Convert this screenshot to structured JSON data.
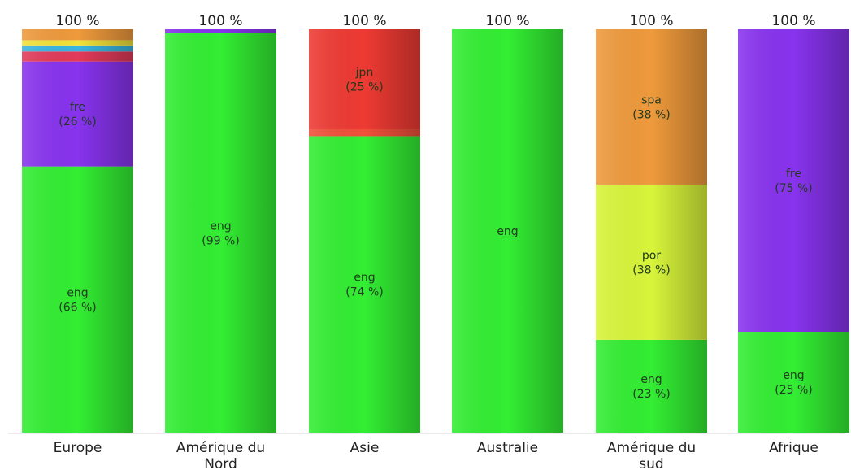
{
  "chart_data": {
    "type": "bar",
    "stacked": true,
    "normalized": true,
    "categories": [
      {
        "label": [
          "Europe"
        ],
        "total_label": "100 %"
      },
      {
        "label": [
          "Amérique du",
          "Nord"
        ],
        "total_label": "100 %"
      },
      {
        "label": [
          "Asie"
        ],
        "total_label": "100 %"
      },
      {
        "label": [
          "Australie"
        ],
        "total_label": "100 %"
      },
      {
        "label": [
          "Amérique du",
          "sud"
        ],
        "total_label": "100 %"
      },
      {
        "label": [
          "Afrique"
        ],
        "total_label": "100 %"
      }
    ],
    "stacks": [
      [
        {
          "series": "eng",
          "value": 66,
          "label": [
            "eng",
            "(66 %)"
          ],
          "color": "#33ee33"
        },
        {
          "series": "fre",
          "value": 26,
          "label": [
            "fre",
            "(26 %)"
          ],
          "color": "#8833ee"
        },
        {
          "series": "",
          "value": 2.5,
          "label": [],
          "color": "#e23a5a"
        },
        {
          "series": "",
          "value": 1.5,
          "label": [],
          "color": "#3ab5e0"
        },
        {
          "series": "",
          "value": 1.3,
          "label": [],
          "color": "#f2e23a"
        },
        {
          "series": "",
          "value": 2.7,
          "label": [],
          "color": "#ef9a3c"
        }
      ],
      [
        {
          "series": "eng",
          "value": 99,
          "label": [
            "eng",
            "(99 %)"
          ],
          "color": "#33ee33"
        },
        {
          "series": "fre",
          "value": 1,
          "label": [],
          "color": "#8833ee"
        }
      ],
      [
        {
          "series": "eng",
          "value": 73.5,
          "label": [
            "eng",
            "(74 %)"
          ],
          "color": "#33ee33"
        },
        {
          "series": "",
          "value": 1.7,
          "label": [],
          "color": "#f0503a"
        },
        {
          "series": "jpn",
          "value": 24.8,
          "label": [
            "jpn",
            "(25 %)"
          ],
          "color": "#ee3a33"
        }
      ],
      [
        {
          "series": "eng",
          "value": 100,
          "label": [
            "eng"
          ],
          "color": "#33ee33"
        }
      ],
      [
        {
          "series": "eng",
          "value": 23,
          "label": [
            "eng",
            "(23 %)"
          ],
          "color": "#33ee33"
        },
        {
          "series": "por",
          "value": 38.5,
          "label": [
            "por",
            "(38 %)"
          ],
          "color": "#d9f53a"
        },
        {
          "series": "spa",
          "value": 38.5,
          "label": [
            "spa",
            "(38 %)"
          ],
          "color": "#ef9a3c"
        }
      ],
      [
        {
          "series": "eng",
          "value": 25,
          "label": [
            "eng",
            "(25 %)"
          ],
          "color": "#33ee33"
        },
        {
          "series": "fre",
          "value": 75,
          "label": [
            "fre",
            "(75 %)"
          ],
          "color": "#8833ee"
        }
      ]
    ],
    "ylim": [
      0,
      100
    ],
    "grid": false,
    "legend": "none"
  }
}
